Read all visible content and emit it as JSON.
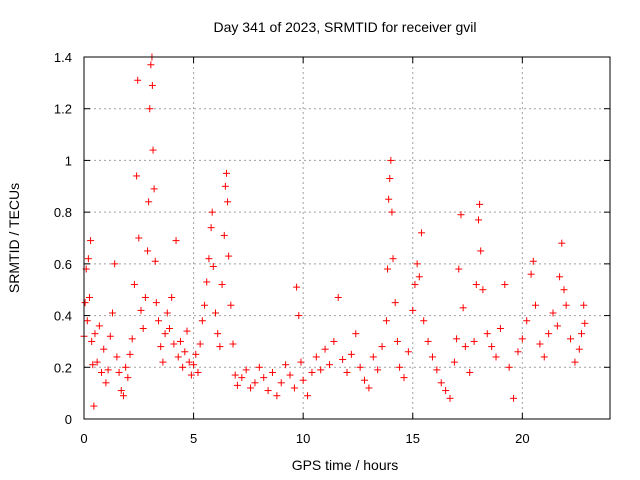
{
  "chart_data": {
    "type": "scatter",
    "title": "Day 341 of 2023, SRMTID for receiver gvil",
    "xlabel": "GPS time / hours",
    "ylabel": "SRMTID / TECUs",
    "xlim": [
      0,
      24
    ],
    "ylim": [
      0,
      1.4
    ],
    "xticks": [
      0,
      5,
      10,
      15,
      20
    ],
    "yticks": [
      0,
      0.2,
      0.4,
      0.6,
      0.8,
      1,
      1.2,
      1.4
    ],
    "xtick_labels": [
      "0",
      "5",
      "10",
      "15",
      "20"
    ],
    "ytick_labels": [
      "0",
      "0.2",
      "0.4",
      "0.6",
      "0.8",
      "1",
      "1.2",
      "1.4"
    ],
    "grid": true,
    "marker": "+",
    "series": [
      {
        "name": "SRMTID",
        "color": "#ff0000",
        "points": [
          [
            0.0,
            0.32
          ],
          [
            0.05,
            0.45
          ],
          [
            0.1,
            0.58
          ],
          [
            0.15,
            0.38
          ],
          [
            0.2,
            0.62
          ],
          [
            0.25,
            0.47
          ],
          [
            0.3,
            0.69
          ],
          [
            0.35,
            0.3
          ],
          [
            0.4,
            0.21
          ],
          [
            0.45,
            0.05
          ],
          [
            0.5,
            0.33
          ],
          [
            0.6,
            0.22
          ],
          [
            0.7,
            0.36
          ],
          [
            0.8,
            0.18
          ],
          [
            0.9,
            0.27
          ],
          [
            1.0,
            0.14
          ],
          [
            1.1,
            0.19
          ],
          [
            1.2,
            0.32
          ],
          [
            1.3,
            0.41
          ],
          [
            1.4,
            0.6
          ],
          [
            1.5,
            0.24
          ],
          [
            1.6,
            0.18
          ],
          [
            1.7,
            0.11
          ],
          [
            1.8,
            0.09
          ],
          [
            1.9,
            0.2
          ],
          [
            2.0,
            0.16
          ],
          [
            2.1,
            0.25
          ],
          [
            2.2,
            0.31
          ],
          [
            2.3,
            0.52
          ],
          [
            2.4,
            0.94
          ],
          [
            2.45,
            1.31
          ],
          [
            2.5,
            0.7
          ],
          [
            2.6,
            0.42
          ],
          [
            2.7,
            0.35
          ],
          [
            2.8,
            0.47
          ],
          [
            2.9,
            0.65
          ],
          [
            2.95,
            0.84
          ],
          [
            3.0,
            1.2
          ],
          [
            3.05,
            1.37
          ],
          [
            3.1,
            1.4
          ],
          [
            3.12,
            1.29
          ],
          [
            3.15,
            1.04
          ],
          [
            3.2,
            0.89
          ],
          [
            3.25,
            0.61
          ],
          [
            3.3,
            0.45
          ],
          [
            3.4,
            0.38
          ],
          [
            3.5,
            0.28
          ],
          [
            3.6,
            0.22
          ],
          [
            3.7,
            0.33
          ],
          [
            3.8,
            0.41
          ],
          [
            3.9,
            0.35
          ],
          [
            4.0,
            0.47
          ],
          [
            4.1,
            0.29
          ],
          [
            4.2,
            0.69
          ],
          [
            4.3,
            0.24
          ],
          [
            4.4,
            0.3
          ],
          [
            4.5,
            0.2
          ],
          [
            4.6,
            0.26
          ],
          [
            4.7,
            0.34
          ],
          [
            4.8,
            0.22
          ],
          [
            4.9,
            0.17
          ],
          [
            5.0,
            0.21
          ],
          [
            5.1,
            0.25
          ],
          [
            5.2,
            0.18
          ],
          [
            5.3,
            0.29
          ],
          [
            5.4,
            0.38
          ],
          [
            5.5,
            0.44
          ],
          [
            5.6,
            0.53
          ],
          [
            5.7,
            0.62
          ],
          [
            5.8,
            0.74
          ],
          [
            5.85,
            0.8
          ],
          [
            5.9,
            0.59
          ],
          [
            6.0,
            0.41
          ],
          [
            6.1,
            0.33
          ],
          [
            6.2,
            0.28
          ],
          [
            6.3,
            0.52
          ],
          [
            6.4,
            0.71
          ],
          [
            6.45,
            0.9
          ],
          [
            6.5,
            0.95
          ],
          [
            6.55,
            0.84
          ],
          [
            6.6,
            0.63
          ],
          [
            6.7,
            0.44
          ],
          [
            6.8,
            0.29
          ],
          [
            6.9,
            0.17
          ],
          [
            7.0,
            0.13
          ],
          [
            7.2,
            0.16
          ],
          [
            7.4,
            0.19
          ],
          [
            7.6,
            0.12
          ],
          [
            7.8,
            0.14
          ],
          [
            8.0,
            0.2
          ],
          [
            8.2,
            0.16
          ],
          [
            8.4,
            0.11
          ],
          [
            8.6,
            0.18
          ],
          [
            8.8,
            0.09
          ],
          [
            9.0,
            0.14
          ],
          [
            9.2,
            0.21
          ],
          [
            9.4,
            0.17
          ],
          [
            9.6,
            0.12
          ],
          [
            9.7,
            0.51
          ],
          [
            9.8,
            0.4
          ],
          [
            9.9,
            0.22
          ],
          [
            10.0,
            0.15
          ],
          [
            10.2,
            0.09
          ],
          [
            10.4,
            0.18
          ],
          [
            10.6,
            0.24
          ],
          [
            10.8,
            0.19
          ],
          [
            11.0,
            0.27
          ],
          [
            11.2,
            0.21
          ],
          [
            11.4,
            0.3
          ],
          [
            11.6,
            0.47
          ],
          [
            11.8,
            0.23
          ],
          [
            12.0,
            0.18
          ],
          [
            12.2,
            0.25
          ],
          [
            12.4,
            0.33
          ],
          [
            12.6,
            0.2
          ],
          [
            12.8,
            0.15
          ],
          [
            13.0,
            0.12
          ],
          [
            13.2,
            0.24
          ],
          [
            13.4,
            0.19
          ],
          [
            13.6,
            0.28
          ],
          [
            13.8,
            0.38
          ],
          [
            13.85,
            0.58
          ],
          [
            13.9,
            0.85
          ],
          [
            13.95,
            0.93
          ],
          [
            14.0,
            1.0
          ],
          [
            14.05,
            0.8
          ],
          [
            14.1,
            0.62
          ],
          [
            14.2,
            0.45
          ],
          [
            14.3,
            0.3
          ],
          [
            14.4,
            0.2
          ],
          [
            14.6,
            0.16
          ],
          [
            14.8,
            0.26
          ],
          [
            15.0,
            0.42
          ],
          [
            15.1,
            0.52
          ],
          [
            15.2,
            0.6
          ],
          [
            15.3,
            0.55
          ],
          [
            15.4,
            0.72
          ],
          [
            15.5,
            0.38
          ],
          [
            15.7,
            0.3
          ],
          [
            15.9,
            0.24
          ],
          [
            16.1,
            0.19
          ],
          [
            16.3,
            0.14
          ],
          [
            16.5,
            0.11
          ],
          [
            16.7,
            0.08
          ],
          [
            16.9,
            0.22
          ],
          [
            17.0,
            0.31
          ],
          [
            17.1,
            0.58
          ],
          [
            17.2,
            0.79
          ],
          [
            17.3,
            0.43
          ],
          [
            17.4,
            0.28
          ],
          [
            17.6,
            0.18
          ],
          [
            17.8,
            0.3
          ],
          [
            17.9,
            0.52
          ],
          [
            18.0,
            0.77
          ],
          [
            18.05,
            0.83
          ],
          [
            18.1,
            0.65
          ],
          [
            18.2,
            0.5
          ],
          [
            18.4,
            0.33
          ],
          [
            18.6,
            0.28
          ],
          [
            18.8,
            0.24
          ],
          [
            19.0,
            0.35
          ],
          [
            19.2,
            0.52
          ],
          [
            19.4,
            0.2
          ],
          [
            19.6,
            0.08
          ],
          [
            19.8,
            0.26
          ],
          [
            20.0,
            0.31
          ],
          [
            20.2,
            0.38
          ],
          [
            20.4,
            0.56
          ],
          [
            20.5,
            0.61
          ],
          [
            20.6,
            0.44
          ],
          [
            20.8,
            0.29
          ],
          [
            21.0,
            0.24
          ],
          [
            21.2,
            0.33
          ],
          [
            21.4,
            0.41
          ],
          [
            21.6,
            0.36
          ],
          [
            21.7,
            0.55
          ],
          [
            21.8,
            0.68
          ],
          [
            21.9,
            0.5
          ],
          [
            22.0,
            0.44
          ],
          [
            22.2,
            0.31
          ],
          [
            22.4,
            0.22
          ],
          [
            22.6,
            0.27
          ],
          [
            22.7,
            0.33
          ],
          [
            22.8,
            0.44
          ],
          [
            22.85,
            0.37
          ]
        ]
      }
    ]
  }
}
